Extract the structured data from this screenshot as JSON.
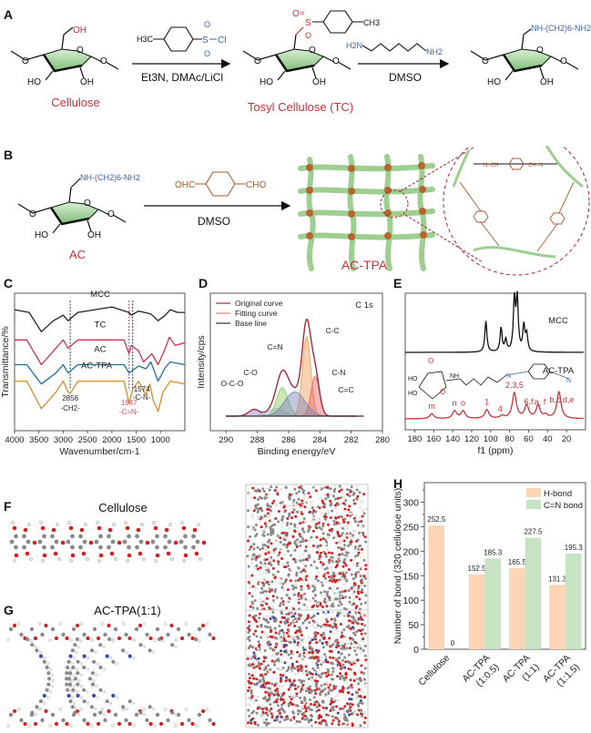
{
  "panels": {
    "A": {
      "label": "A",
      "cellulose_name": "Cellulose",
      "tosyl_name": "Tosyl Cellulose (TC)",
      "step1_reagent": "H3C-C6H4-SO2-Cl",
      "step1_conditions": "Et3N, DMAc/LiCl",
      "step2_reagent": "H2N-(CH2)6-NH2",
      "step2_conditions": "DMSO",
      "product_substituent": "NH-(CH2)6-NH2",
      "atoms": {
        "OH": "OH",
        "HO": "HO",
        "O": "O",
        "S": "S",
        "Cl": "Cl",
        "CH3": "CH3",
        "H3C": "H3C",
        "H2N": "H2N",
        "NH2": "NH2"
      }
    },
    "B": {
      "label": "B",
      "reactant_name": "AC",
      "reagent": "OHC-C6H4-CHO",
      "reagent_left": "OHC",
      "reagent_right": "CHO",
      "conditions": "DMSO",
      "product_name": "AC-TPA",
      "substituent": "NH-(CH2)6-NH2",
      "linker_labels": [
        "N=CH",
        "CH=N"
      ]
    },
    "F": {
      "label": "F",
      "title": "Cellulose"
    },
    "G": {
      "label": "G",
      "title": "AC-TPA(1:1)"
    }
  },
  "colors": {
    "red": "#c8323c",
    "blue": "#3d62a8",
    "brown": "#a85a2c",
    "green": "#8cc788",
    "orange_bar": "#fbd5b5",
    "green_bar": "#c6e3c4",
    "mcc": "#222222",
    "tc": "#c8324f",
    "ac": "#1f6e9a",
    "actpa": "#d98a2a"
  },
  "chart_data": [
    {
      "id": "C",
      "type": "line",
      "title": "",
      "xlabel": "Wavenumber/cm-1",
      "ylabel": "Transmittance/%",
      "xlim": [
        4000,
        500
      ],
      "xticks": [
        4000,
        3500,
        3000,
        2500,
        2000,
        1500,
        1000
      ],
      "series": [
        {
          "name": "MCC",
          "color": "#222222",
          "points": [
            [
              4000,
              0.88
            ],
            [
              3700,
              0.86
            ],
            [
              3450,
              0.72
            ],
            [
              3200,
              0.8
            ],
            [
              3000,
              0.84
            ],
            [
              2900,
              0.8
            ],
            [
              2700,
              0.86
            ],
            [
              2000,
              0.9
            ],
            [
              1650,
              0.86
            ],
            [
              1600,
              0.84
            ],
            [
              1450,
              0.87
            ],
            [
              1200,
              0.85
            ],
            [
              1050,
              0.8
            ],
            [
              900,
              0.84
            ],
            [
              800,
              0.88
            ],
            [
              650,
              0.86
            ],
            [
              500,
              0.86
            ]
          ]
        },
        {
          "name": "TC",
          "color": "#c8324f",
          "points": [
            [
              4000,
              0.66
            ],
            [
              3750,
              0.66
            ],
            [
              3450,
              0.48
            ],
            [
              3150,
              0.6
            ],
            [
              3000,
              0.66
            ],
            [
              2900,
              0.6
            ],
            [
              2700,
              0.66
            ],
            [
              1750,
              0.66
            ],
            [
              1650,
              0.56
            ],
            [
              1600,
              0.62
            ],
            [
              1450,
              0.58
            ],
            [
              1350,
              0.5
            ],
            [
              1180,
              0.56
            ],
            [
              1050,
              0.48
            ],
            [
              900,
              0.6
            ],
            [
              820,
              0.68
            ],
            [
              700,
              0.62
            ],
            [
              500,
              0.64
            ]
          ]
        },
        {
          "name": "AC",
          "color": "#1f6e9a",
          "points": [
            [
              4000,
              0.48
            ],
            [
              3750,
              0.48
            ],
            [
              3450,
              0.34
            ],
            [
              3150,
              0.42
            ],
            [
              3000,
              0.48
            ],
            [
              2900,
              0.42
            ],
            [
              2700,
              0.48
            ],
            [
              1750,
              0.48
            ],
            [
              1647,
              0.42
            ],
            [
              1574,
              0.44
            ],
            [
              1450,
              0.47
            ],
            [
              1300,
              0.45
            ],
            [
              1200,
              0.5
            ],
            [
              1050,
              0.36
            ],
            [
              900,
              0.46
            ],
            [
              800,
              0.5
            ],
            [
              500,
              0.48
            ]
          ]
        },
        {
          "name": "AC-TPA",
          "color": "#d98a2a",
          "points": [
            [
              4000,
              0.36
            ],
            [
              3750,
              0.36
            ],
            [
              3450,
              0.16
            ],
            [
              3150,
              0.28
            ],
            [
              3000,
              0.36
            ],
            [
              2900,
              0.28
            ],
            [
              2856,
              0.27
            ],
            [
              2700,
              0.36
            ],
            [
              1750,
              0.36
            ],
            [
              1647,
              0.2
            ],
            [
              1574,
              0.3
            ],
            [
              1450,
              0.36
            ],
            [
              1300,
              0.26
            ],
            [
              1220,
              0.34
            ],
            [
              1150,
              0.22
            ],
            [
              1050,
              0.14
            ],
            [
              950,
              0.28
            ],
            [
              800,
              0.36
            ],
            [
              500,
              0.34
            ]
          ]
        }
      ],
      "annotations": [
        {
          "x": 2856,
          "text": "2856",
          "sub": "-CH2-",
          "color": "#222222"
        },
        {
          "x": 1647,
          "text": "1647",
          "sub": "-C=N-",
          "color": "#d0507a"
        },
        {
          "x": 1574,
          "text": "1574",
          "sub": "-C-N-",
          "color": "#222222"
        }
      ],
      "legend": "inline"
    },
    {
      "id": "D",
      "type": "area",
      "title": "C 1s",
      "xlabel": "Binding energy/eV",
      "ylabel": "Intensity/cps",
      "xlim": [
        291,
        280
      ],
      "xticks": [
        290,
        288,
        286,
        284,
        282,
        280
      ],
      "legend_entries": [
        "Original curve",
        "Fitting curve",
        "Base line"
      ],
      "legend_colors": [
        "#a8283a",
        "#e88080",
        "#333333"
      ],
      "legend": "top-left",
      "components": [
        {
          "name": "O-C-O",
          "center": 288.2,
          "height": 0.06,
          "width": 0.6,
          "color": "#8a80c8"
        },
        {
          "name": "C-O",
          "center": 286.8,
          "height": 0.07,
          "width": 0.8,
          "color": "#a0b4d8"
        },
        {
          "name": "C=N",
          "center": 286.4,
          "height": 0.26,
          "width": 0.6,
          "color": "#8cc860"
        },
        {
          "name": "C-C",
          "center": 284.85,
          "height": 0.72,
          "width": 0.45,
          "color": "#f09a50"
        },
        {
          "name": "C-N",
          "center": 284.3,
          "height": 0.36,
          "width": 0.45,
          "color": "#e86060"
        },
        {
          "name": "C=C",
          "center": 285.6,
          "height": 0.22,
          "width": 1.1,
          "color": "#7880b8"
        }
      ]
    },
    {
      "id": "E",
      "type": "line",
      "xlabel": "f1 (ppm)",
      "xlim": [
        190,
        0
      ],
      "xticks": [
        180,
        160,
        140,
        120,
        100,
        80,
        60,
        40,
        20
      ],
      "series": [
        {
          "name": "MCC",
          "color": "#111111",
          "peaks": [
            [
              105,
              0.55
            ],
            [
              89,
              0.42
            ],
            [
              84,
              0.2
            ],
            [
              75,
              0.9
            ],
            [
              72,
              0.92
            ],
            [
              65,
              0.45
            ],
            [
              62,
              0.3
            ]
          ]
        },
        {
          "name": "AC-TPA",
          "color": "#c8323c",
          "peaks": [
            [
              162,
              0.08
            ],
            [
              138,
              0.12
            ],
            [
              129,
              0.12
            ],
            [
              104,
              0.14
            ],
            [
              88,
              0.04
            ],
            [
              75,
              0.4
            ],
            [
              62,
              0.2
            ],
            [
              50,
              0.2
            ],
            [
              42,
              0.05
            ],
            [
              28,
              0.42
            ]
          ]
        }
      ],
      "peak_labels": [
        "m",
        "n",
        "o",
        "1",
        "4",
        "2,3,5",
        "6,f",
        "a, f",
        "b,c,d,e"
      ],
      "peak_label_x": [
        162,
        138,
        129,
        104,
        90,
        75,
        60,
        48,
        25
      ],
      "structure_labels": [
        "HO",
        "HO",
        "O",
        "O",
        "NH",
        "N",
        "N",
        "1",
        "2",
        "3",
        "4",
        "5",
        "6",
        "a",
        "b",
        "c",
        "d",
        "e",
        "f",
        "m",
        "n",
        "o"
      ]
    },
    {
      "id": "H",
      "type": "bar",
      "title": "",
      "xlabel": "",
      "ylabel": "Number of bond (320 cellulose units)",
      "ylim": [
        0,
        340
      ],
      "yticks": [
        0,
        50,
        100,
        150,
        200,
        250,
        300
      ],
      "categories": [
        "Cellulose",
        "AC-TPA\n(1:0.5)",
        "AC-TPA\n(1:1)",
        "AC-TPA\n(1:1.5)"
      ],
      "category_lines": [
        [
          "Cellulose"
        ],
        [
          "AC-TPA",
          "(1:0.5)"
        ],
        [
          "AC-TPA",
          "(1:1)"
        ],
        [
          "AC-TPA",
          "(1:1.5)"
        ]
      ],
      "series": [
        {
          "name": "H-bond",
          "color": "#fbd5b5",
          "values": [
            252.5,
            152.5,
            165.5,
            131.3
          ],
          "labels": [
            "252.5",
            "152.5",
            "165.5",
            "131.3"
          ]
        },
        {
          "name": "C=N bond",
          "color": "#c6e3c4",
          "values": [
            0,
            185.3,
            227.5,
            195.3
          ],
          "labels": [
            "0",
            "185.3",
            "227.5",
            "195.3"
          ]
        }
      ],
      "legend": "top-right"
    }
  ]
}
